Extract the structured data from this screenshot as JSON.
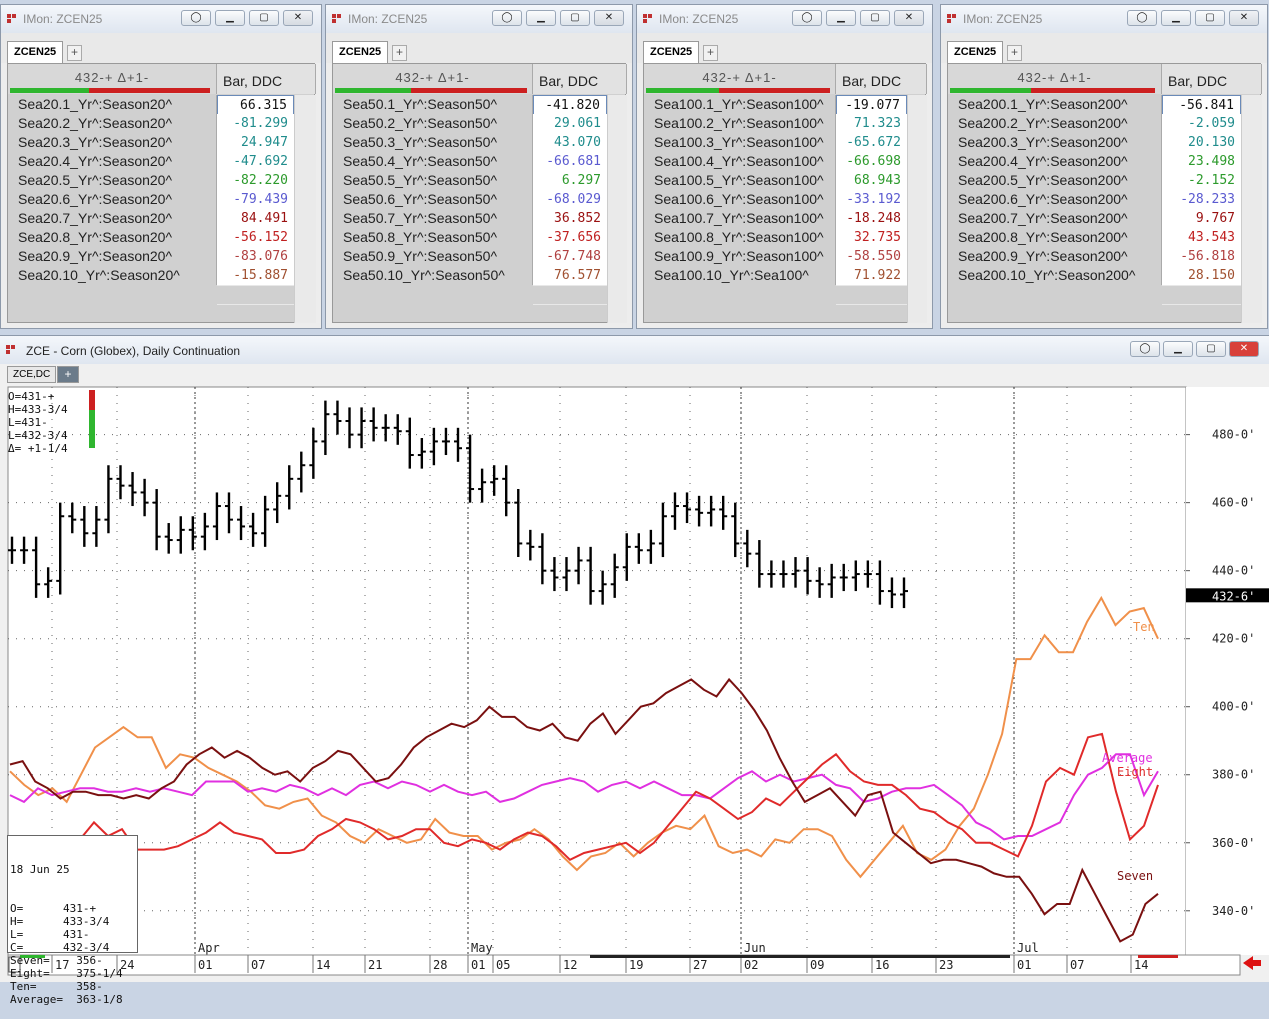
{
  "monitors": [
    {
      "title": "IMon: ZCEN25",
      "tab": "ZCEN25",
      "header_left": "432-+    Δ+1-",
      "header_right": "Bar, DDC",
      "rows": [
        {
          "name": "Sea20.1_Yr^:Season20^",
          "value": "66.315",
          "color": "#111111"
        },
        {
          "name": "Sea20.2_Yr^:Season20^",
          "value": "-81.299",
          "color": "#1f8c8c"
        },
        {
          "name": "Sea20.3_Yr^:Season20^",
          "value": "24.947",
          "color": "#1f8c8c"
        },
        {
          "name": "Sea20.4_Yr^:Season20^",
          "value": "-47.692",
          "color": "#1f8c8c"
        },
        {
          "name": "Sea20.5_Yr^:Season20^",
          "value": "-82.220",
          "color": "#2c9a2c"
        },
        {
          "name": "Sea20.6_Yr^:Season20^",
          "value": "-79.439",
          "color": "#5a5ad0"
        },
        {
          "name": "Sea20.7_Yr^:Season20^",
          "value": "84.491",
          "color": "#9a1010"
        },
        {
          "name": "Sea20.8_Yr^:Season20^",
          "value": "-56.152",
          "color": "#c02020"
        },
        {
          "name": "Sea20.9_Yr^:Season20^",
          "value": "-83.076",
          "color": "#b04040"
        },
        {
          "name": "Sea20.10_Yr^:Season20^",
          "value": "-15.887",
          "color": "#a05030"
        }
      ]
    },
    {
      "title": "IMon: ZCEN25",
      "tab": "ZCEN25",
      "header_left": "432-+    Δ+1-",
      "header_right": "Bar, DDC",
      "rows": [
        {
          "name": "Sea50.1_Yr^:Season50^",
          "value": "-41.820",
          "color": "#111111"
        },
        {
          "name": "Sea50.2_Yr^:Season50^",
          "value": "29.061",
          "color": "#1f8c8c"
        },
        {
          "name": "Sea50.3_Yr^:Season50^",
          "value": "43.070",
          "color": "#1f8c8c"
        },
        {
          "name": "Sea50.4_Yr^:Season50^",
          "value": "-66.681",
          "color": "#5a5ad0"
        },
        {
          "name": "Sea50.5_Yr^:Season50^",
          "value": "6.297",
          "color": "#2c9a2c"
        },
        {
          "name": "Sea50.6_Yr^:Season50^",
          "value": "-68.029",
          "color": "#5a5ad0"
        },
        {
          "name": "Sea50.7_Yr^:Season50^",
          "value": "36.852",
          "color": "#9a1010"
        },
        {
          "name": "Sea50.8_Yr^:Season50^",
          "value": "-37.656",
          "color": "#c02020"
        },
        {
          "name": "Sea50.9_Yr^:Season50^",
          "value": "-67.748",
          "color": "#b04040"
        },
        {
          "name": "Sea50.10_Yr^:Season50^",
          "value": "76.577",
          "color": "#a05030"
        }
      ]
    },
    {
      "title": "IMon: ZCEN25",
      "tab": "ZCEN25",
      "header_left": "432-+    Δ+1-",
      "header_right": "Bar, DDC",
      "rows": [
        {
          "name": "Sea100.1_Yr^:Season100^",
          "value": "-19.077",
          "color": "#111111"
        },
        {
          "name": "Sea100.2_Yr^:Season100^",
          "value": "71.323",
          "color": "#1f8c8c"
        },
        {
          "name": "Sea100.3_Yr^:Season100^",
          "value": "-65.672",
          "color": "#1f8c8c"
        },
        {
          "name": "Sea100.4_Yr^:Season100^",
          "value": "-66.698",
          "color": "#2c9a2c"
        },
        {
          "name": "Sea100.5_Yr^:Season100^",
          "value": "68.943",
          "color": "#2c9a2c"
        },
        {
          "name": "Sea100.6_Yr^:Season100^",
          "value": "-33.192",
          "color": "#5a5ad0"
        },
        {
          "name": "Sea100.7_Yr^:Season100^",
          "value": "-18.248",
          "color": "#9a1010"
        },
        {
          "name": "Sea100.8_Yr^:Season100^",
          "value": "32.735",
          "color": "#c02020"
        },
        {
          "name": "Sea100.9_Yr^:Season100^",
          "value": "-58.550",
          "color": "#b04040"
        },
        {
          "name": "Sea100.10_Yr^:Sea100^",
          "value": "71.922",
          "color": "#a05030"
        }
      ]
    },
    {
      "title": "IMon: ZCEN25",
      "tab": "ZCEN25",
      "header_left": "432-+    Δ+1-",
      "header_right": "Bar, DDC",
      "rows": [
        {
          "name": "Sea200.1_Yr^:Season200^",
          "value": "-56.841",
          "color": "#111111"
        },
        {
          "name": "Sea200.2_Yr^:Season200^",
          "value": "-2.059",
          "color": "#1f8c8c"
        },
        {
          "name": "Sea200.3_Yr^:Season200^",
          "value": "20.130",
          "color": "#1f8c8c"
        },
        {
          "name": "Sea200.4_Yr^:Season200^",
          "value": "23.498",
          "color": "#2c9a2c"
        },
        {
          "name": "Sea200.5_Yr^:Season200^",
          "value": "-2.152",
          "color": "#2c9a2c"
        },
        {
          "name": "Sea200.6_Yr^:Season200^",
          "value": "-28.233",
          "color": "#5a5ad0"
        },
        {
          "name": "Sea200.7_Yr^:Season200^",
          "value": "9.767",
          "color": "#9a1010"
        },
        {
          "name": "Sea200.8_Yr^:Season200^",
          "value": "43.543",
          "color": "#c02020"
        },
        {
          "name": "Sea200.9_Yr^:Season200^",
          "value": "-56.818",
          "color": "#b04040"
        },
        {
          "name": "Sea200.10_Yr^:Season200^",
          "value": "28.150",
          "color": "#a05030"
        }
      ]
    }
  ],
  "chart_window": {
    "title": "ZCE - Corn (Globex), Daily Continuation",
    "tab": "ZCE,DC",
    "plus": "+"
  },
  "quote_legend": [
    "O=431-+",
    "H=433-3/4",
    "L=431-",
    "L=432-3/4",
    "Δ= +1-1/4"
  ],
  "data_box": {
    "date": "18 Jun 25",
    "lines": [
      "O=      431-+",
      "H=      433-3/4",
      "L=      431-",
      "C=      432-3/4",
      "Seven=    356-",
      "Eight=    375-1/4",
      "Ten=      358-",
      "Average=  363-1/8"
    ]
  },
  "chart_data": {
    "type": "bar",
    "price_axis": {
      "ticks": [
        "480-0'",
        "460-0'",
        "440-0'",
        "420-0'",
        "400-0'",
        "380-0'",
        "360-0'",
        "340-0'"
      ],
      "values": [
        480,
        460,
        440,
        420,
        400,
        380,
        360,
        340
      ],
      "ylim": [
        327,
        494
      ]
    },
    "last_price": "432-6'",
    "last_value": 432.75,
    "month_labels": [
      "Apr",
      "May",
      "Jun",
      "Jul"
    ],
    "day_labels": [
      "17",
      "24",
      "01",
      "07",
      "14",
      "21",
      "28",
      "01",
      "05",
      "12",
      "19",
      "27",
      "02",
      "09",
      "16",
      "23",
      "01",
      "07",
      "14"
    ],
    "ohlc_close": [
      446,
      446,
      436,
      437,
      456,
      455,
      451,
      455,
      467,
      465,
      463,
      460,
      450,
      449,
      452,
      450,
      453,
      459,
      455,
      453,
      451,
      458,
      462,
      467,
      471,
      478,
      486,
      484,
      480,
      484,
      482,
      482,
      481,
      474,
      475,
      478,
      478,
      476,
      464,
      466,
      467,
      460,
      448,
      447,
      440,
      438,
      440,
      443,
      434,
      436,
      441,
      447,
      446,
      448,
      456,
      459,
      458,
      457,
      458,
      456,
      448,
      445,
      439,
      439,
      439,
      440,
      437,
      436,
      438,
      438,
      439,
      439,
      434,
      433,
      434
    ],
    "series": [
      {
        "name": "Ten",
        "color": "#f0904a",
        "values": [
          381,
          377,
          374,
          376,
          372,
          380,
          388,
          391,
          394,
          391,
          391,
          382,
          386,
          385,
          382,
          380,
          378,
          375,
          371,
          370,
          372,
          373,
          368,
          366,
          362,
          360,
          364,
          362,
          360,
          361,
          367,
          363,
          362,
          362,
          358,
          360,
          361,
          364,
          361,
          356,
          352,
          356,
          357,
          360,
          356,
          360,
          363,
          365,
          364,
          368,
          359,
          357,
          358,
          356,
          361,
          360,
          364,
          364,
          362,
          355,
          350,
          355,
          360,
          365,
          357,
          355,
          358,
          365,
          370,
          380,
          392,
          414,
          414,
          421,
          416,
          416,
          425,
          432,
          424,
          428,
          429,
          420
        ]
      },
      {
        "name": "Average",
        "color": "#e030e0",
        "values": [
          374,
          372,
          376,
          374,
          375,
          376,
          376,
          375,
          375,
          376,
          375,
          376,
          375,
          374,
          378,
          378,
          378,
          375,
          376,
          375,
          377,
          376,
          374,
          376,
          374,
          377,
          378,
          376,
          378,
          377,
          375,
          377,
          375,
          374,
          375,
          372,
          373,
          375,
          377,
          378,
          379,
          378,
          375,
          377,
          378,
          376,
          378,
          376,
          374,
          374,
          373,
          376,
          379,
          381,
          378,
          380,
          378,
          379,
          380,
          377,
          376,
          372,
          373,
          375,
          376,
          376,
          377,
          374,
          371,
          366,
          364,
          361,
          362,
          362,
          364,
          366,
          374,
          380,
          382,
          386,
          386,
          374,
          381
        ]
      },
      {
        "name": "Eight",
        "color": "#e02a2a",
        "values": [
          358,
          359,
          359,
          361,
          362,
          361,
          366,
          362,
          364,
          358,
          358,
          358,
          359,
          361,
          363,
          366,
          363,
          362,
          361,
          357,
          357,
          358,
          362,
          364,
          367,
          366,
          364,
          361,
          362,
          364,
          364,
          360,
          359,
          361,
          360,
          358,
          361,
          363,
          362,
          359,
          355,
          357,
          358,
          359,
          360,
          357,
          360,
          365,
          370,
          375,
          373,
          370,
          367,
          369,
          373,
          371,
          375,
          379,
          383,
          386,
          381,
          378,
          377,
          377,
          374,
          370,
          369,
          366,
          364,
          360,
          360,
          358,
          356,
          365,
          378,
          382,
          380,
          391,
          392,
          375,
          361,
          365,
          377
        ]
      },
      {
        "name": "Seven",
        "color": "#7a1010",
        "values": [
          383,
          384,
          378,
          376,
          373,
          375,
          375,
          374,
          374,
          373,
          374,
          373,
          376,
          378,
          383,
          386,
          388,
          385,
          387,
          385,
          382,
          380,
          381,
          378,
          382,
          384,
          387,
          386,
          382,
          378,
          379,
          383,
          388,
          391,
          393,
          395,
          394,
          396,
          400,
          397,
          397,
          394,
          393,
          395,
          391,
          390,
          395,
          398,
          392,
          396,
          400,
          401,
          404,
          406,
          408,
          405,
          403,
          408,
          404,
          399,
          393,
          385,
          378,
          372,
          374,
          376,
          372,
          368,
          374,
          375,
          363,
          360,
          357,
          354,
          355,
          355,
          354,
          353,
          351,
          350,
          350,
          345,
          339,
          342,
          342,
          352,
          345,
          338,
          331,
          333,
          342,
          345
        ]
      }
    ],
    "series_labels": [
      "Ten",
      "Average",
      "Eight",
      "Seven"
    ]
  },
  "colors": {
    "green_bar": "#2fb62f",
    "red_bar": "#cc2020",
    "arrow": "#dd1111"
  }
}
